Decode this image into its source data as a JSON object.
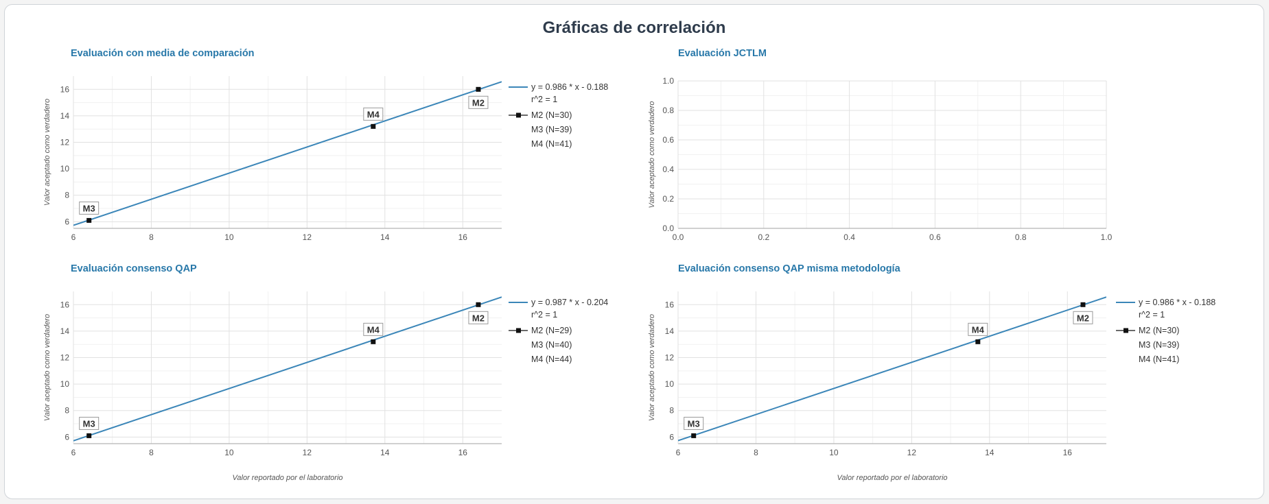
{
  "page_title": "Gráficas de correlación",
  "colors": {
    "title": "#2f3c4c",
    "chart_title": "#2878a9",
    "line": "#3b86b8",
    "marker": "#111111",
    "grid": "#e1e1e1",
    "grid_minor": "#f1f1f1"
  },
  "chart_data": [
    {
      "type": "scatter",
      "title": "Evaluación con media de comparación",
      "xlabel": "",
      "ylabel": "Valor aceptado como verdadero",
      "xlim": [
        6,
        17
      ],
      "ylim": [
        5.5,
        17
      ],
      "xticks": [
        6,
        8,
        10,
        12,
        14,
        16
      ],
      "yticks": [
        6,
        8,
        10,
        12,
        14,
        16
      ],
      "points": [
        {
          "label": "M3",
          "x": 6.4,
          "y": 6.1,
          "label_pos": "above"
        },
        {
          "label": "M4",
          "x": 13.7,
          "y": 13.2,
          "label_pos": "above"
        },
        {
          "label": "M2",
          "x": 16.4,
          "y": 16.0,
          "label_pos": "below"
        }
      ],
      "fit": {
        "slope": 0.986,
        "intercept": -0.188
      },
      "legend": [
        {
          "kind": "line",
          "text": "y = 0.986 * x - 0.188"
        },
        {
          "kind": "none",
          "text": "r^2 = 1"
        },
        {
          "kind": "marker",
          "text": "M2 (N=30)"
        },
        {
          "kind": "none",
          "text": "M3 (N=39)"
        },
        {
          "kind": "none",
          "text": "M4 (N=41)"
        }
      ],
      "legend_placement": "right",
      "grid": true
    },
    {
      "type": "scatter",
      "title": "Evaluación JCTLM",
      "xlabel": "",
      "ylabel": "Valor aceptado como verdadero",
      "xlim": [
        0,
        1
      ],
      "ylim": [
        0,
        1
      ],
      "xticks": [
        0.0,
        0.2,
        0.4,
        0.6,
        0.8,
        1.0
      ],
      "yticks": [
        0.0,
        0.2,
        0.4,
        0.6,
        0.8,
        1.0
      ],
      "points": [],
      "legend": [],
      "grid": true
    },
    {
      "type": "scatter",
      "title": "Evaluación consenso QAP",
      "xlabel": "Valor reportado por el laboratorio",
      "ylabel": "Valor aceptado como verdadero",
      "xlim": [
        6,
        17
      ],
      "ylim": [
        5.5,
        17
      ],
      "xticks": [
        6,
        8,
        10,
        12,
        14,
        16
      ],
      "yticks": [
        6,
        8,
        10,
        12,
        14,
        16
      ],
      "points": [
        {
          "label": "M3",
          "x": 6.4,
          "y": 6.1,
          "label_pos": "above"
        },
        {
          "label": "M4",
          "x": 13.7,
          "y": 13.2,
          "label_pos": "above"
        },
        {
          "label": "M2",
          "x": 16.4,
          "y": 16.0,
          "label_pos": "below"
        }
      ],
      "fit": {
        "slope": 0.987,
        "intercept": -0.204
      },
      "legend": [
        {
          "kind": "line",
          "text": "y = 0.987 * x - 0.204"
        },
        {
          "kind": "none",
          "text": "r^2 = 1"
        },
        {
          "kind": "marker",
          "text": "M2 (N=29)"
        },
        {
          "kind": "none",
          "text": "M3 (N=40)"
        },
        {
          "kind": "none",
          "text": "M4 (N=44)"
        }
      ],
      "legend_placement": "right",
      "grid": true
    },
    {
      "type": "scatter",
      "title": "Evaluación consenso QAP misma metodología",
      "xlabel": "Valor reportado por el laboratorio",
      "ylabel": "Valor aceptado como verdadero",
      "xlim": [
        6,
        17
      ],
      "ylim": [
        5.5,
        17
      ],
      "xticks": [
        6,
        8,
        10,
        12,
        14,
        16
      ],
      "yticks": [
        6,
        8,
        10,
        12,
        14,
        16
      ],
      "points": [
        {
          "label": "M3",
          "x": 6.4,
          "y": 6.1,
          "label_pos": "above"
        },
        {
          "label": "M4",
          "x": 13.7,
          "y": 13.2,
          "label_pos": "above"
        },
        {
          "label": "M2",
          "x": 16.4,
          "y": 16.0,
          "label_pos": "below"
        }
      ],
      "fit": {
        "slope": 0.986,
        "intercept": -0.188
      },
      "legend": [
        {
          "kind": "line",
          "text": "y = 0.986 * x - 0.188"
        },
        {
          "kind": "none",
          "text": "r^2 = 1"
        },
        {
          "kind": "marker",
          "text": "M2 (N=30)"
        },
        {
          "kind": "none",
          "text": "M3 (N=39)"
        },
        {
          "kind": "none",
          "text": "M4 (N=41)"
        }
      ],
      "legend_placement": "right",
      "grid": true
    }
  ]
}
